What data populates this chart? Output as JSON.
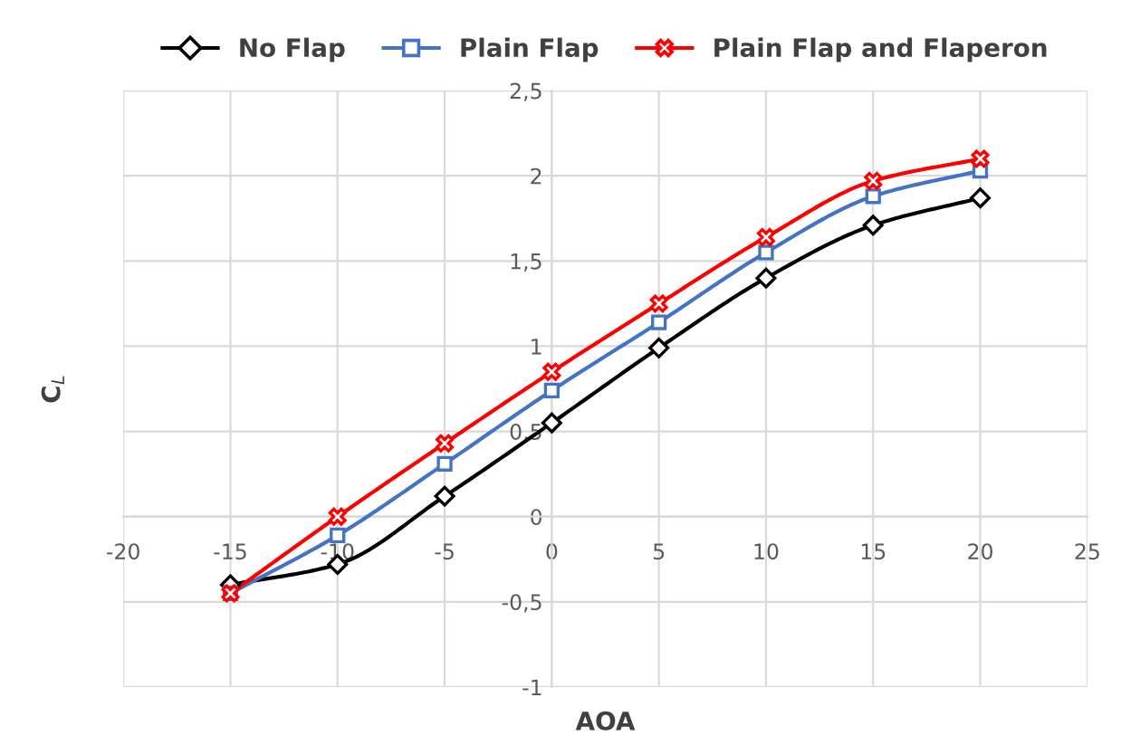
{
  "chart_data": {
    "type": "line",
    "xlabel": "AOA",
    "ylabel": "C$_{L}$",
    "x": [
      -15,
      -10,
      -5,
      0,
      5,
      10,
      15,
      20
    ],
    "series": [
      {
        "name": "No Flap",
        "color": "#000000",
        "marker": "diamond",
        "values": [
          -0.4,
          -0.28,
          0.12,
          0.55,
          0.99,
          1.4,
          1.71,
          1.87
        ]
      },
      {
        "name": "Plain Flap",
        "color": "#4472c4",
        "marker": "square",
        "values": [
          -0.45,
          -0.11,
          0.31,
          0.74,
          1.14,
          1.55,
          1.88,
          2.03
        ]
      },
      {
        "name": "Plain Flap and Flaperon",
        "color": "#ff0000",
        "marker": "cross",
        "values": [
          -0.45,
          0.0,
          0.43,
          0.85,
          1.25,
          1.64,
          1.97,
          2.1
        ]
      }
    ],
    "xlim": [
      -20,
      25
    ],
    "xticks": [
      -20,
      -15,
      -10,
      -5,
      0,
      5,
      10,
      15,
      20,
      25
    ],
    "ylim": [
      -1,
      2.5
    ],
    "yticks": [
      -1,
      {
        "value": -0.5,
        "label": "-0,5"
      },
      0,
      {
        "value": 0.5,
        "label": "0,5"
      },
      1,
      {
        "value": 1.5,
        "label": "1,5"
      },
      2,
      {
        "value": 2.5,
        "label": "2,5"
      }
    ],
    "grid": true,
    "legend": "top",
    "line_style": "solid"
  }
}
